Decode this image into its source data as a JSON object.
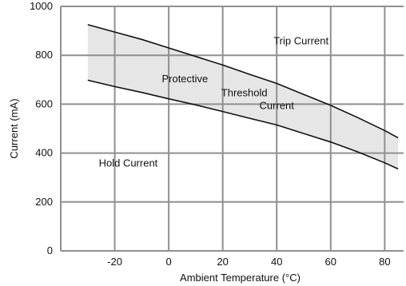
{
  "chart_data": {
    "type": "area",
    "xlabel": "Ambient Temperature (°C)",
    "ylabel": "Current (mA)",
    "xlim": [
      -40,
      87
    ],
    "ylim": [
      0,
      1000
    ],
    "x_ticks": [
      -20,
      0,
      20,
      40,
      60,
      80
    ],
    "y_ticks": [
      0,
      200,
      400,
      600,
      800,
      1000
    ],
    "x_tick_labels": [
      "-20",
      "0",
      "20",
      "40",
      "60",
      "80"
    ],
    "y_tick_labels": [
      "0",
      "200",
      "400",
      "600",
      "800",
      "1000"
    ],
    "grid": true,
    "series": [
      {
        "name": "Trip Current",
        "x": [
          -30,
          -20,
          -10,
          0,
          10,
          20,
          30,
          40,
          50,
          60,
          70,
          80,
          85
        ],
        "y": [
          925,
          895,
          865,
          830,
          795,
          760,
          722,
          685,
          640,
          595,
          545,
          492,
          462
        ]
      },
      {
        "name": "Hold Current",
        "x": [
          -30,
          -20,
          -10,
          0,
          10,
          20,
          30,
          40,
          50,
          60,
          70,
          80,
          85
        ],
        "y": [
          698,
          672,
          648,
          622,
          597,
          570,
          542,
          515,
          480,
          445,
          405,
          360,
          335
        ]
      }
    ],
    "annotations": [
      {
        "text": "Trip Current",
        "x": 49,
        "y": 845
      },
      {
        "text": "Protective",
        "x": 6,
        "y": 690
      },
      {
        "text": "Threshold",
        "x": 28,
        "y": 632
      },
      {
        "text": "Current",
        "x": 40,
        "y": 580
      },
      {
        "text": "Hold Current",
        "x": -15,
        "y": 345
      }
    ]
  }
}
